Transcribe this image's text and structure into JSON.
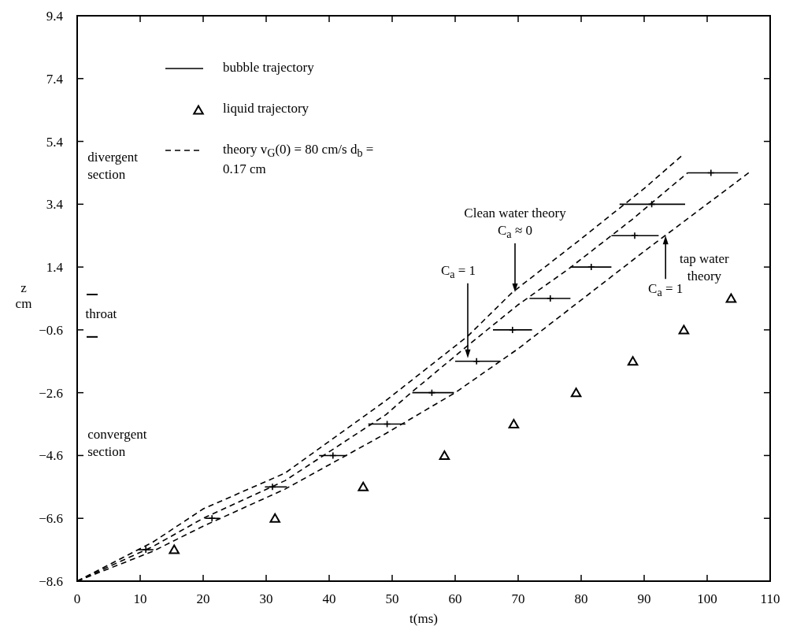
{
  "chart_data": {
    "type": "scatter",
    "xlabel": "t(ms)",
    "ylabel": "z cm",
    "xlim": [
      0,
      110
    ],
    "xticks": [
      0,
      10,
      20,
      30,
      40,
      50,
      60,
      70,
      80,
      90,
      100,
      110
    ],
    "ylim": [
      -8.6,
      9.4
    ],
    "yticks": [
      -8.6,
      -6.6,
      -4.6,
      -2.6,
      -0.6,
      1.4,
      3.4,
      5.4,
      7.4,
      9.4
    ],
    "grid": false,
    "legend": "top left",
    "series": [
      {
        "name": "bubble trajectory",
        "marker": "cross",
        "color": "#000000",
        "x": [
          10.9,
          21.4,
          31.0,
          40.6,
          49.2,
          56.3,
          63.4,
          69.1,
          75.1,
          81.6,
          88.5,
          91.2,
          100.6
        ],
        "values": [
          -7.6,
          -6.6,
          -5.6,
          -4.6,
          -3.6,
          -2.6,
          -1.6,
          -0.6,
          0.4,
          1.4,
          2.4,
          3.4,
          4.4
        ],
        "xerrors": [
          [
            9.7,
            12.1
          ],
          [
            20.3,
            22.6
          ],
          [
            29.8,
            33.3
          ],
          [
            38.4,
            42.8
          ],
          [
            46.2,
            52.1
          ],
          [
            53.2,
            59.8
          ],
          [
            60.0,
            67.2
          ],
          [
            66.0,
            72.2
          ],
          [
            71.8,
            78.3
          ],
          [
            78.3,
            84.8
          ],
          [
            84.8,
            92.3
          ],
          [
            86.1,
            96.5
          ],
          [
            96.9,
            104.9
          ]
        ]
      },
      {
        "name": "liquid trajectory",
        "marker": "triangle",
        "color": "#000000",
        "x": [
          15.4,
          31.4,
          45.4,
          58.3,
          69.3,
          79.2,
          88.2,
          96.3,
          103.8
        ],
        "values": [
          -7.6,
          -6.6,
          -5.6,
          -4.6,
          -3.6,
          -2.6,
          -1.6,
          -0.6,
          0.4
        ]
      },
      {
        "name": "theory v$_{G}$(0) = 80 cm/s d$_{b}$ = 0.17 cm",
        "type": "line",
        "line_style": "dashed",
        "marker": "none",
        "color": "#000000",
        "x": [
          0,
          12,
          20,
          33,
          49,
          62,
          69,
          80,
          90,
          96.3
        ],
        "values": [
          -8.6,
          -7.36,
          -6.3,
          -5.16,
          -2.85,
          -0.8,
          0.58,
          2.3,
          3.9,
          5.0
        ]
      },
      {
        "type": "line",
        "line_style": "dashed",
        "marker": "none",
        "color": "#000000",
        "x": [
          0,
          12,
          20,
          33,
          49,
          53,
          62,
          70,
          78,
          88,
          96.9
        ],
        "values": [
          -8.6,
          -7.5,
          -6.6,
          -5.4,
          -3.3,
          -2.6,
          -1.1,
          0.2,
          1.34,
          2.9,
          4.4
        ]
      },
      {
        "type": "line",
        "line_style": "dashed",
        "marker": "none",
        "color": "#000000",
        "x": [
          0,
          12,
          20,
          33,
          49,
          60,
          70,
          78,
          90,
          106.6
        ],
        "values": [
          -8.6,
          -7.65,
          -6.85,
          -5.67,
          -3.9,
          -2.6,
          -1.2,
          0.04,
          1.9,
          4.4
        ]
      }
    ],
    "annotations": [
      "divergent section",
      "convergent section",
      "tap water theory",
      "throat",
      {
        "text": "Clean water theory C$_{a}$ ≈ 0",
        "x": 69.5,
        "y": 0.6
      },
      {
        "text": "C$_{a}$ = 1",
        "x": 62,
        "y": -1.5
      },
      {
        "text": "C$_{a}$ = 1",
        "x": 93.4,
        "y": 2.4
      }
    ]
  }
}
